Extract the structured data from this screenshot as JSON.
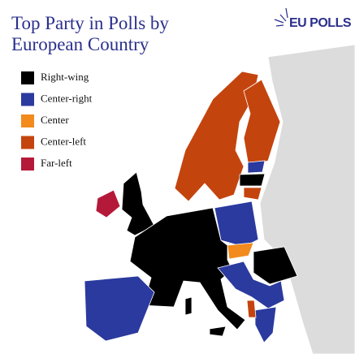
{
  "header": {
    "title": "Top Party in Polls by European Country",
    "logo": "EU POLLS"
  },
  "legend": {
    "items": [
      {
        "label": "Right-wing",
        "color": "#000000"
      },
      {
        "label": "Center-right",
        "color": "#2b3a9e"
      },
      {
        "label": "Center",
        "color": "#f28a1e"
      },
      {
        "label": "Center-left",
        "color": "#c4440e"
      },
      {
        "label": "Far-left",
        "color": "#b5193a"
      }
    ]
  }
}
